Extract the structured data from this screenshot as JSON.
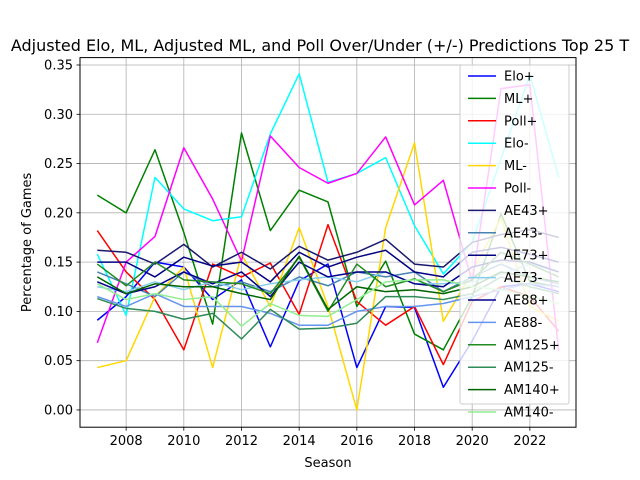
{
  "chart_data": {
    "type": "line",
    "title": "Adjusted Elo, ML, Adjusted ML, and Poll Over/Under (+/-) Predictions Top 25 T",
    "xlabel": "Season",
    "ylabel": "Percentage of Games",
    "xlim": [
      2006.4,
      2023.6
    ],
    "ylim": [
      -0.0175,
      0.3575
    ],
    "xticks": [
      2008,
      2010,
      2012,
      2014,
      2016,
      2018,
      2020,
      2022
    ],
    "yticks": [
      0.0,
      0.05,
      0.1,
      0.15,
      0.2,
      0.25,
      0.3,
      0.35
    ],
    "ytick_labels": [
      "0.00",
      "0.05",
      "0.10",
      "0.15",
      "0.20",
      "0.25",
      "0.30",
      "0.35"
    ],
    "grid": true,
    "legend_position": "upper-right",
    "x": [
      2007,
      2008,
      2009,
      2010,
      2011,
      2012,
      2013,
      2014,
      2015,
      2016,
      2017,
      2018,
      2019,
      2020,
      2021,
      2022,
      2023
    ],
    "series": [
      {
        "name": "Elo+",
        "color": "#0000ff",
        "values": [
          0.091,
          0.115,
          0.15,
          0.145,
          0.112,
          0.132,
          0.064,
          0.131,
          0.148,
          0.043,
          0.105,
          0.104,
          0.023,
          0.07,
          0.125,
          0.128,
          0.12
        ]
      },
      {
        "name": "ML+",
        "color": "#008000",
        "values": [
          0.218,
          0.2,
          0.264,
          0.18,
          0.087,
          0.281,
          0.182,
          0.223,
          0.211,
          0.105,
          0.151,
          0.077,
          0.061,
          0.115,
          0.199,
          0.13,
          0.125
        ]
      },
      {
        "name": "Poll+",
        "color": "#ff0000",
        "values": [
          0.182,
          0.14,
          0.112,
          0.061,
          0.148,
          0.135,
          0.149,
          0.097,
          0.188,
          0.11,
          0.086,
          0.105,
          0.046,
          0.11,
          0.125,
          0.115,
          0.08
        ]
      },
      {
        "name": "Elo-",
        "color": "#00ffff",
        "values": [
          0.158,
          0.096,
          0.236,
          0.204,
          0.192,
          0.196,
          0.28,
          0.341,
          0.231,
          0.24,
          0.256,
          0.187,
          0.138,
          0.17,
          0.255,
          0.34,
          0.236
        ]
      },
      {
        "name": "ML-",
        "color": "#ffd700",
        "values": [
          0.043,
          0.05,
          0.115,
          0.145,
          0.043,
          0.158,
          0.105,
          0.185,
          0.105,
          0.0,
          0.185,
          0.271,
          0.09,
          0.14,
          0.195,
          0.105,
          0.09
        ]
      },
      {
        "name": "Poll-",
        "color": "#ff00ff",
        "values": [
          0.068,
          0.15,
          0.176,
          0.266,
          0.214,
          0.151,
          0.278,
          0.246,
          0.23,
          0.24,
          0.277,
          0.208,
          0.233,
          0.13,
          0.326,
          0.33,
          0.06
        ]
      },
      {
        "name": "AE43+",
        "color": "#191970",
        "values": [
          0.162,
          0.16,
          0.148,
          0.168,
          0.145,
          0.16,
          0.143,
          0.166,
          0.152,
          0.16,
          0.173,
          0.148,
          0.145,
          0.17,
          0.178,
          0.183,
          0.175
        ]
      },
      {
        "name": "AE43-",
        "color": "#4682b4",
        "values": [
          0.14,
          0.128,
          0.115,
          0.14,
          0.125,
          0.13,
          0.12,
          0.135,
          0.126,
          0.14,
          0.135,
          0.14,
          0.12,
          0.135,
          0.148,
          0.135,
          0.128
        ]
      },
      {
        "name": "AE73+",
        "color": "#000080",
        "values": [
          0.15,
          0.15,
          0.135,
          0.155,
          0.146,
          0.15,
          0.13,
          0.16,
          0.145,
          0.155,
          0.162,
          0.14,
          0.135,
          0.16,
          0.165,
          0.158,
          0.15
        ]
      },
      {
        "name": "AE73-",
        "color": "#87ceeb",
        "values": [
          0.125,
          0.12,
          0.13,
          0.122,
          0.13,
          0.122,
          0.128,
          0.132,
          0.135,
          0.13,
          0.14,
          0.128,
          0.128,
          0.13,
          0.138,
          0.148,
          0.14
        ]
      },
      {
        "name": "AE88+",
        "color": "#00008b",
        "values": [
          0.13,
          0.118,
          0.125,
          0.14,
          0.128,
          0.14,
          0.115,
          0.15,
          0.135,
          0.14,
          0.14,
          0.128,
          0.125,
          0.145,
          0.152,
          0.15,
          0.14
        ]
      },
      {
        "name": "AE88-",
        "color": "#6495ed",
        "values": [
          0.115,
          0.105,
          0.118,
          0.105,
          0.105,
          0.105,
          0.098,
          0.086,
          0.086,
          0.1,
          0.105,
          0.105,
          0.108,
          0.115,
          0.122,
          0.128,
          0.125
        ]
      },
      {
        "name": "AM125+",
        "color": "#228b22",
        "values": [
          0.148,
          0.126,
          0.15,
          0.132,
          0.13,
          0.128,
          0.118,
          0.155,
          0.1,
          0.148,
          0.125,
          0.133,
          0.12,
          0.132,
          0.16,
          0.148,
          0.135
        ]
      },
      {
        "name": "AM125-",
        "color": "#2e8b57",
        "values": [
          0.113,
          0.103,
          0.1,
          0.092,
          0.098,
          0.072,
          0.102,
          0.082,
          0.083,
          0.088,
          0.115,
          0.115,
          0.112,
          0.118,
          0.135,
          0.125,
          0.118
        ]
      },
      {
        "name": "AM140+",
        "color": "#006400",
        "values": [
          0.135,
          0.118,
          0.128,
          0.125,
          0.125,
          0.118,
          0.112,
          0.156,
          0.102,
          0.125,
          0.12,
          0.122,
          0.118,
          0.125,
          0.14,
          0.135,
          0.13
        ]
      },
      {
        "name": "AM140-",
        "color": "#90ee90",
        "values": [
          0.128,
          0.112,
          0.118,
          0.112,
          0.115,
          0.085,
          0.108,
          0.096,
          0.095,
          0.112,
          0.13,
          0.132,
          0.132,
          0.125,
          0.122,
          0.115,
          0.108
        ]
      }
    ]
  }
}
